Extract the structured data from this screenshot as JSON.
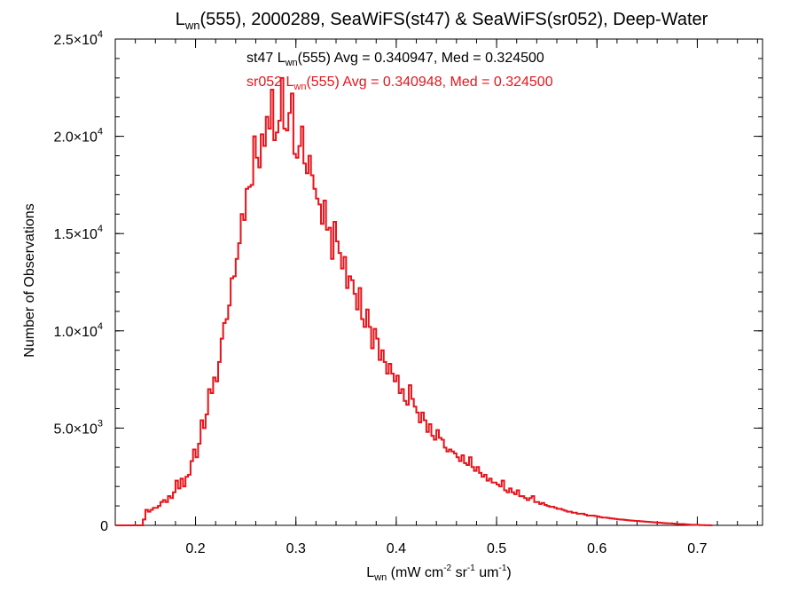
{
  "chart_data": {
    "type": "histogram",
    "title": {
      "prefix": "L",
      "sub": "wn",
      "rest": "(555), 2000289, SeaWiFS(st47) & SeaWiFS(sr052), Deep-Water"
    },
    "xlabel": {
      "prefix": "L",
      "sub": "wn",
      "p1": " (mW cm",
      "sup1": "-2",
      "p2": " sr",
      "sup2": "-1",
      "p3": " um",
      "sup3": "-1",
      "p4": ")"
    },
    "ylabel": "Number of Observations",
    "xlim": [
      0.12,
      0.765
    ],
    "ylim": [
      0,
      25000
    ],
    "x_ticks": [
      {
        "value": 0.2,
        "label": "0.2"
      },
      {
        "value": 0.3,
        "label": "0.3"
      },
      {
        "value": 0.4,
        "label": "0.4"
      },
      {
        "value": 0.5,
        "label": "0.5"
      },
      {
        "value": 0.6,
        "label": "0.6"
      },
      {
        "value": 0.7,
        "label": "0.7"
      }
    ],
    "x_minor_step": 0.02,
    "y_ticks": [
      {
        "value": 0,
        "mant": "0",
        "exp": ""
      },
      {
        "value": 5000,
        "mant": "5.0×10",
        "exp": "3"
      },
      {
        "value": 10000,
        "mant": "1.0×10",
        "exp": "4"
      },
      {
        "value": 15000,
        "mant": "1.5×10",
        "exp": "4"
      },
      {
        "value": 20000,
        "mant": "2.0×10",
        "exp": "4"
      },
      {
        "value": 25000,
        "mant": "2.5×10",
        "exp": "4"
      }
    ],
    "y_minor_step": 1000,
    "bin_width": 0.0025,
    "series": [
      {
        "name": "st47",
        "color": "#000000",
        "label": {
          "prefix": "st47 L",
          "sub": "wn",
          "rest": "(555) Avg = 0.340947, Med = 0.324500"
        },
        "avg": 0.340947,
        "median": 0.3245
      },
      {
        "name": "sr052",
        "color": "#e8141b",
        "label": {
          "prefix": "sr052 L",
          "sub": "wn",
          "rest": "(555) Avg = 0.340948, Med = 0.324500"
        },
        "avg": 0.340948,
        "median": 0.3245
      }
    ],
    "bins": {
      "x_start": 0.12,
      "counts": [
        0,
        0,
        0,
        0,
        0,
        0,
        0,
        0,
        0,
        0,
        0,
        300,
        800,
        700,
        800,
        900,
        900,
        1000,
        1200,
        1300,
        1200,
        1500,
        1400,
        1700,
        2300,
        1900,
        2400,
        2000,
        2500,
        2600,
        3300,
        3900,
        3500,
        4200,
        5400,
        5000,
        5700,
        7000,
        6800,
        7600,
        7400,
        8400,
        9600,
        10400,
        10600,
        11300,
        12700,
        12800,
        13700,
        14500,
        16000,
        15700,
        17300,
        17400,
        17500,
        20000,
        18900,
        18400,
        20100,
        19500,
        21000,
        20400,
        22400,
        19800,
        20200,
        20800,
        23000,
        20400,
        20300,
        21200,
        22200,
        19100,
        18900,
        19500,
        20500,
        18600,
        18100,
        19000,
        18000,
        17300,
        16800,
        16500,
        15500,
        16700,
        15200,
        15300,
        13700,
        15600,
        14600,
        14000,
        13200,
        13800,
        12200,
        12800,
        12600,
        11900,
        11100,
        12200,
        10600,
        10200,
        11100,
        10200,
        9100,
        10100,
        9600,
        8500,
        9000,
        8400,
        7800,
        8300,
        7800,
        7400,
        7700,
        6800,
        7000,
        6400,
        6200,
        7200,
        6500,
        6100,
        5800,
        5300,
        5800,
        5400,
        4800,
        5200,
        4600,
        4400,
        4900,
        4500,
        4400,
        4000,
        3800,
        3900,
        3800,
        3700,
        3500,
        3300,
        3600,
        3200,
        3100,
        3500,
        3000,
        2800,
        3000,
        2700,
        2500,
        2600,
        2300,
        2400,
        2200,
        2200,
        2100,
        2000,
        2300,
        1800,
        1700,
        1900,
        1700,
        1600,
        1800,
        1500,
        1500,
        1400,
        1300,
        1400,
        1500,
        1200,
        1200,
        1100,
        1150,
        1050,
        1000,
        950,
        950,
        900,
        850,
        850,
        800,
        750,
        700,
        700,
        650,
        650,
        600,
        600,
        600,
        550,
        500,
        500,
        500,
        480,
        450,
        420,
        400,
        400,
        380,
        360,
        350,
        330,
        310,
        300,
        290,
        280,
        260,
        250,
        240,
        230,
        220,
        210,
        200,
        190,
        180,
        170,
        160,
        150,
        140,
        130,
        120,
        110,
        100,
        100,
        90,
        80,
        70,
        60,
        60,
        50,
        40,
        30,
        30,
        20,
        20,
        10,
        10,
        5,
        5,
        0
      ]
    }
  }
}
